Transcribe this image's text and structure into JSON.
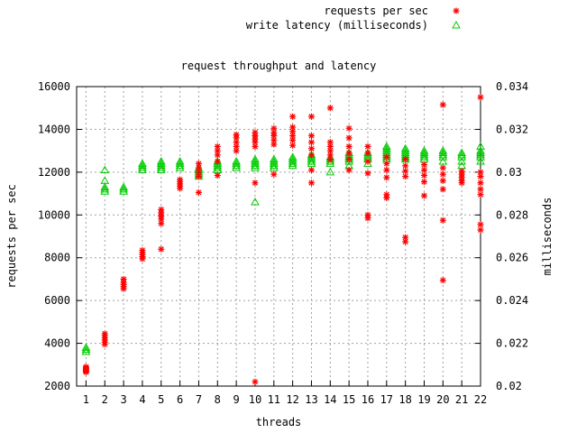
{
  "chart_data": {
    "type": "scatter",
    "title": "request throughput and latency",
    "xlabel": "threads",
    "ylabel": "requests per sec",
    "y2label": "milliseconds",
    "xlim": [
      0.5,
      22
    ],
    "ylim": [
      2000,
      16000
    ],
    "y2lim": [
      0.02,
      0.034
    ],
    "x_ticks": [
      1,
      2,
      3,
      4,
      5,
      6,
      7,
      8,
      9,
      10,
      11,
      12,
      13,
      14,
      15,
      16,
      17,
      18,
      19,
      20,
      21,
      22
    ],
    "y_ticks": [
      2000,
      4000,
      6000,
      8000,
      10000,
      12000,
      14000,
      16000
    ],
    "y2_ticks": [
      0.02,
      0.022,
      0.024,
      0.026,
      0.028,
      0.03,
      0.032,
      0.034
    ],
    "grid": true,
    "legend_position": "top-right, outside plot",
    "series": [
      {
        "name": "requests per sec",
        "axis": "y",
        "marker": "asterisk",
        "color": "#ff0000",
        "points": [
          {
            "x": 1,
            "values": [
              2650,
              2700,
              2750,
              2800,
              2850,
              2900
            ]
          },
          {
            "x": 2,
            "values": [
              3950,
              4050,
              4150,
              4250,
              4350,
              4450
            ]
          },
          {
            "x": 3,
            "values": [
              6550,
              6650,
              6750,
              6850,
              7000
            ]
          },
          {
            "x": 4,
            "values": [
              7950,
              8050,
              8150,
              8250,
              8350
            ]
          },
          {
            "x": 5,
            "values": [
              8400,
              9600,
              9800,
              9950,
              10100,
              10250
            ]
          },
          {
            "x": 6,
            "values": [
              11250,
              11350,
              11450,
              11550,
              11650
            ]
          },
          {
            "x": 7,
            "values": [
              11050,
              11800,
              12000,
              12200,
              12400
            ]
          },
          {
            "x": 8,
            "values": [
              11850,
              12500,
              12800,
              13000,
              13200
            ]
          },
          {
            "x": 9,
            "values": [
              13000,
              13200,
              13400,
              13600,
              13750
            ]
          },
          {
            "x": 10,
            "values": [
              2200,
              11500,
              13200,
              13400,
              13550,
              13700,
              13850
            ]
          },
          {
            "x": 11,
            "values": [
              11900,
              13300,
              13500,
              13700,
              13850,
              14050
            ]
          },
          {
            "x": 12,
            "values": [
              13250,
              13500,
              13700,
              13900,
              14100,
              14600
            ]
          },
          {
            "x": 13,
            "values": [
              11500,
              12100,
              12800,
              13100,
              13400,
              13700,
              14600
            ]
          },
          {
            "x": 14,
            "values": [
              12600,
              12800,
              13000,
              13200,
              13400,
              15000
            ]
          },
          {
            "x": 15,
            "values": [
              12100,
              12600,
              12900,
              13200,
              13600,
              14050
            ]
          },
          {
            "x": 16,
            "values": [
              9850,
              10000,
              11950,
              12500,
              12900,
              13200
            ]
          },
          {
            "x": 17,
            "values": [
              10800,
              10950,
              11750,
              12100,
              12400,
              12700
            ]
          },
          {
            "x": 18,
            "values": [
              8750,
              8950,
              11800,
              12050,
              12300,
              12600
            ]
          },
          {
            "x": 19,
            "values": [
              10900,
              11550,
              11850,
              12100,
              12350
            ]
          },
          {
            "x": 20,
            "values": [
              6950,
              9750,
              11200,
              11600,
              11900,
              12200,
              15150
            ]
          },
          {
            "x": 21,
            "values": [
              11500,
              11600,
              11750,
              11900,
              12050
            ]
          },
          {
            "x": 22,
            "values": [
              9300,
              9550,
              10950,
              11200,
              11500,
              11800,
              12000,
              15500
            ]
          }
        ]
      },
      {
        "name": "write latency (milliseconds)",
        "axis": "y2",
        "marker": "triangle",
        "color": "#00cc00",
        "points": [
          {
            "x": 1,
            "values": [
              0.0216,
              0.0217,
              0.0218
            ]
          },
          {
            "x": 2,
            "values": [
              0.0291,
              0.0292,
              0.0293,
              0.0296,
              0.0301
            ]
          },
          {
            "x": 3,
            "values": [
              0.0291,
              0.0292,
              0.0293
            ]
          },
          {
            "x": 4,
            "values": [
              0.0301,
              0.0302,
              0.0303,
              0.0304
            ]
          },
          {
            "x": 5,
            "values": [
              0.0301,
              0.0302,
              0.0303,
              0.0304,
              0.0305
            ]
          },
          {
            "x": 6,
            "values": [
              0.0302,
              0.0303,
              0.0304,
              0.0305
            ]
          },
          {
            "x": 7,
            "values": [
              0.0298,
              0.0299,
              0.03,
              0.0301,
              0.0302
            ]
          },
          {
            "x": 8,
            "values": [
              0.0301,
              0.0302,
              0.0303,
              0.0304,
              0.0305
            ]
          },
          {
            "x": 9,
            "values": [
              0.0302,
              0.0303,
              0.0304,
              0.0305
            ]
          },
          {
            "x": 10,
            "values": [
              0.0286,
              0.0302,
              0.0303,
              0.0304,
              0.0305,
              0.0306
            ]
          },
          {
            "x": 11,
            "values": [
              0.0302,
              0.0303,
              0.0304,
              0.0305,
              0.0306
            ]
          },
          {
            "x": 12,
            "values": [
              0.0303,
              0.0304,
              0.0305,
              0.0306,
              0.0307
            ]
          },
          {
            "x": 13,
            "values": [
              0.0304,
              0.0305,
              0.0306,
              0.0307,
              0.0308
            ]
          },
          {
            "x": 14,
            "values": [
              0.03,
              0.0304,
              0.0305,
              0.0306,
              0.0307
            ]
          },
          {
            "x": 15,
            "values": [
              0.0303,
              0.0305,
              0.0306,
              0.0307,
              0.0308,
              0.0309
            ]
          },
          {
            "x": 16,
            "values": [
              0.0304,
              0.0306,
              0.0307,
              0.0308,
              0.0309
            ]
          },
          {
            "x": 17,
            "values": [
              0.0306,
              0.0307,
              0.0308,
              0.0309,
              0.031,
              0.0311,
              0.0312
            ]
          },
          {
            "x": 18,
            "values": [
              0.0306,
              0.0307,
              0.0308,
              0.0309,
              0.031,
              0.0311
            ]
          },
          {
            "x": 19,
            "values": [
              0.0306,
              0.0307,
              0.0308,
              0.0309,
              0.031
            ]
          },
          {
            "x": 20,
            "values": [
              0.0305,
              0.0307,
              0.0308,
              0.0309,
              0.031
            ]
          },
          {
            "x": 21,
            "values": [
              0.0303,
              0.0305,
              0.0307,
              0.0308,
              0.0309
            ]
          },
          {
            "x": 22,
            "values": [
              0.0305,
              0.0307,
              0.0308,
              0.0309,
              0.031,
              0.0312
            ]
          }
        ]
      }
    ]
  }
}
